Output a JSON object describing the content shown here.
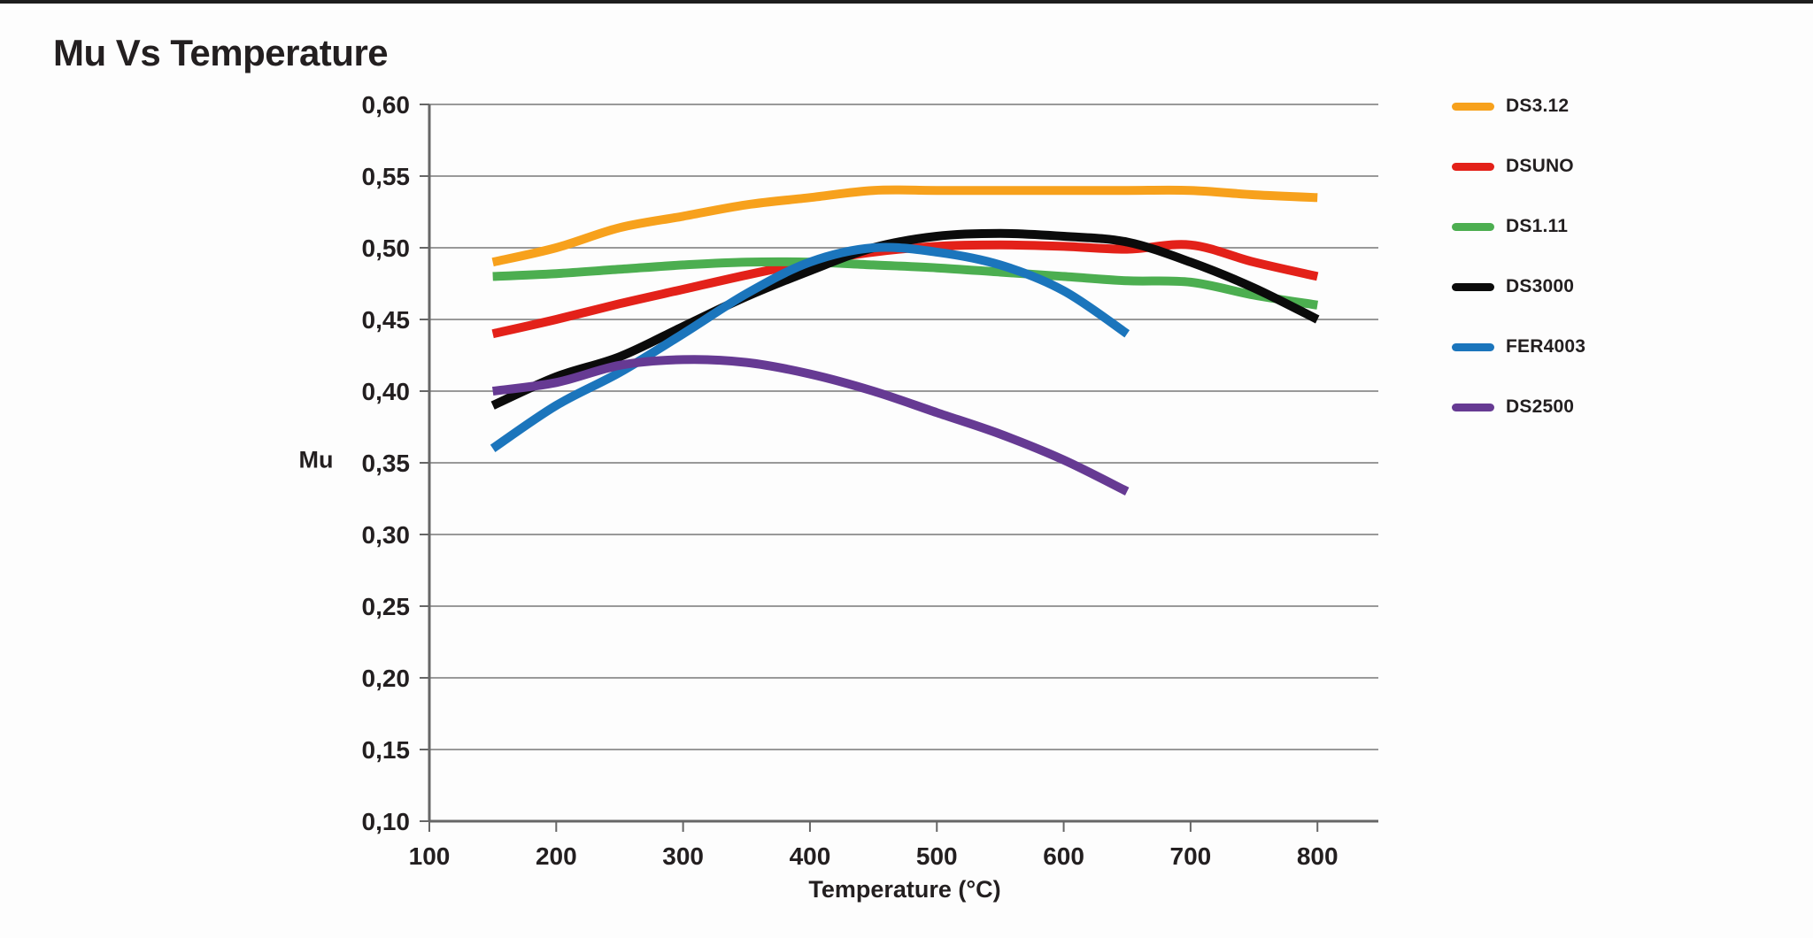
{
  "page": {
    "title": "Mu Vs Temperature"
  },
  "chart_data": {
    "type": "line",
    "title": "Mu Vs Temperature",
    "xlabel": "Temperature (°C)",
    "ylabel": "Mu",
    "xlim": [
      100,
      848
    ],
    "ylim": [
      0.1,
      0.6
    ],
    "grid": "horizontal",
    "legend_position": "right",
    "x_ticks": [
      100,
      200,
      300,
      400,
      500,
      600,
      700,
      800
    ],
    "x_tick_labels": [
      "100",
      "200",
      "300",
      "400",
      "500",
      "600",
      "700",
      "800"
    ],
    "y_ticks": [
      0.1,
      0.15,
      0.2,
      0.25,
      0.3,
      0.35,
      0.4,
      0.45,
      0.5,
      0.55,
      0.6
    ],
    "y_tick_labels": [
      "0,10",
      "0,15",
      "0,20",
      "0,25",
      "0,30",
      "0,35",
      "0,40",
      "0,45",
      "0,50",
      "0,55",
      "0,60"
    ],
    "colors": {
      "grid": "#999999",
      "axis": "#666666",
      "text": "#231f20",
      "top_border": "#1e1e1e"
    },
    "series": [
      {
        "name": "DS3.12",
        "color": "#f7a11c",
        "x": [
          150,
          200,
          250,
          300,
          350,
          400,
          450,
          500,
          550,
          600,
          650,
          700,
          750,
          800
        ],
        "y": [
          0.49,
          0.5,
          0.514,
          0.522,
          0.53,
          0.535,
          0.54,
          0.54,
          0.54,
          0.54,
          0.54,
          0.54,
          0.537,
          0.535
        ]
      },
      {
        "name": "DSUNO",
        "color": "#e32119",
        "x": [
          150,
          200,
          250,
          300,
          350,
          400,
          450,
          500,
          550,
          600,
          650,
          700,
          750,
          800
        ],
        "y": [
          0.44,
          0.45,
          0.461,
          0.471,
          0.481,
          0.49,
          0.497,
          0.501,
          0.502,
          0.501,
          0.499,
          0.502,
          0.49,
          0.48
        ]
      },
      {
        "name": "DS1.11",
        "color": "#4cae50",
        "x": [
          150,
          200,
          250,
          300,
          350,
          400,
          450,
          500,
          550,
          600,
          650,
          700,
          750,
          800
        ],
        "y": [
          0.48,
          0.482,
          0.485,
          0.488,
          0.49,
          0.49,
          0.488,
          0.486,
          0.483,
          0.48,
          0.477,
          0.476,
          0.467,
          0.46
        ]
      },
      {
        "name": "DS3000",
        "color": "#0b0b0b",
        "x": [
          150,
          200,
          250,
          300,
          350,
          400,
          450,
          500,
          550,
          600,
          650,
          700,
          750,
          800
        ],
        "y": [
          0.39,
          0.41,
          0.424,
          0.445,
          0.466,
          0.484,
          0.5,
          0.508,
          0.51,
          0.508,
          0.504,
          0.49,
          0.472,
          0.45
        ]
      },
      {
        "name": "FER4003",
        "color": "#1b75bc",
        "x": [
          150,
          200,
          250,
          300,
          350,
          400,
          450,
          500,
          550,
          600,
          650
        ],
        "y": [
          0.36,
          0.39,
          0.413,
          0.44,
          0.468,
          0.49,
          0.5,
          0.497,
          0.488,
          0.47,
          0.44
        ]
      },
      {
        "name": "DS2500",
        "color": "#663a93",
        "x": [
          150,
          200,
          250,
          300,
          350,
          400,
          450,
          500,
          550,
          600,
          650
        ],
        "y": [
          0.4,
          0.406,
          0.418,
          0.422,
          0.42,
          0.412,
          0.4,
          0.385,
          0.37,
          0.352,
          0.33
        ]
      }
    ]
  }
}
